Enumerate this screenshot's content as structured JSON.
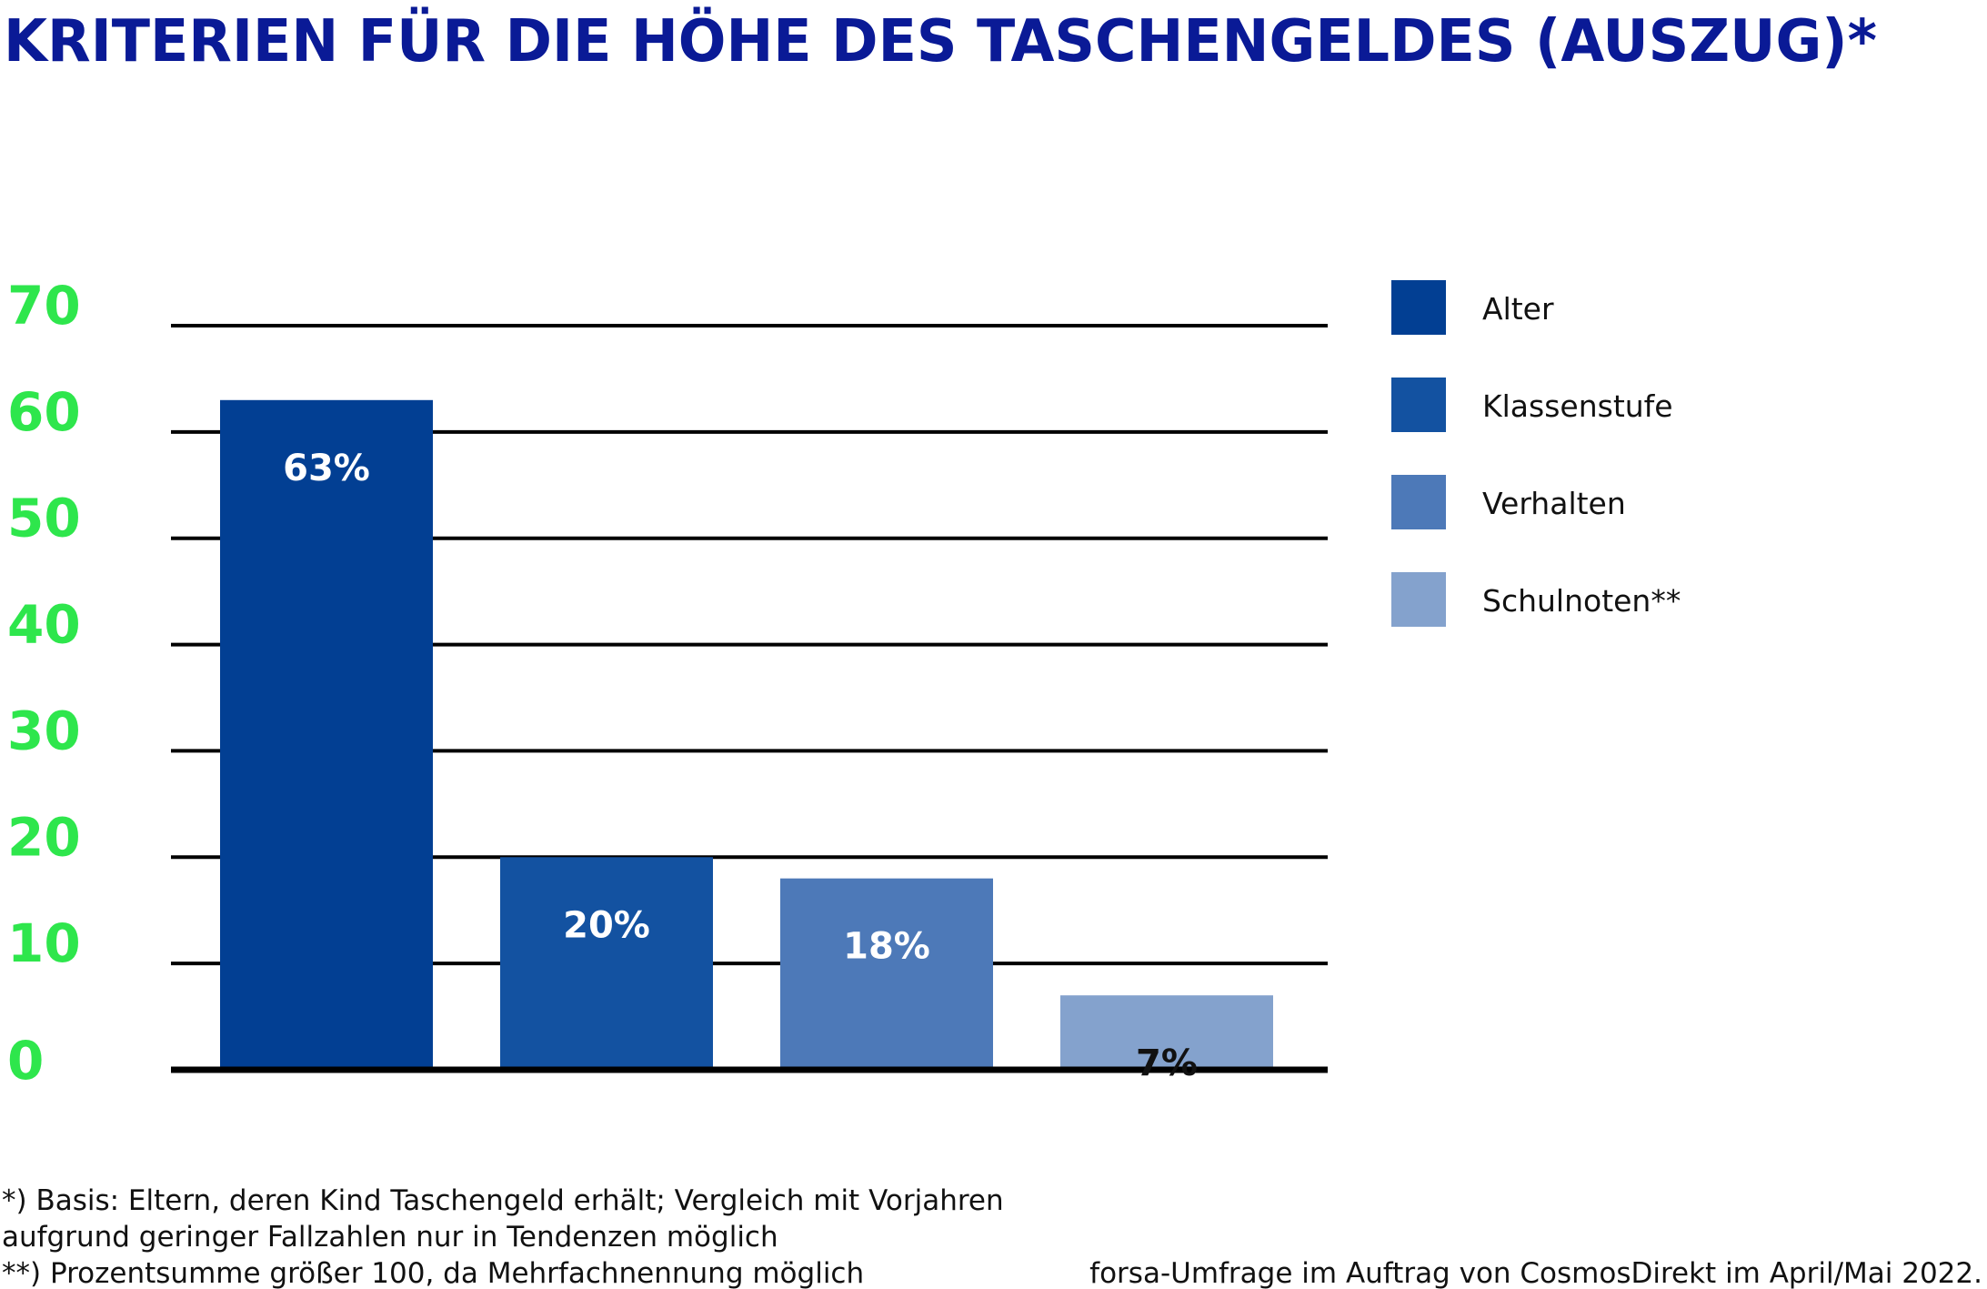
{
  "chart_data": {
    "type": "bar",
    "title": "KRITERIEN FÜR DIE HÖHE DES TASCHENGELDES (AUSZUG)*",
    "ylim": [
      0,
      70
    ],
    "yticks": [
      0,
      10,
      20,
      30,
      40,
      50,
      60,
      70
    ],
    "grid": true,
    "legend_position": "right",
    "categories": [
      "Alter",
      "Klassenstufe",
      "Verhalten",
      "Schulnoten**"
    ],
    "values": [
      63,
      20,
      18,
      7
    ],
    "data_labels": [
      "63%",
      "20%",
      "18%",
      "7%"
    ],
    "colors": [
      "#023f93",
      "#1352a1",
      "#4d79b8",
      "#84a2cd"
    ],
    "label_colors": [
      "#ffffff",
      "#ffffff",
      "#ffffff",
      "#111111"
    ],
    "tick_color": "#2ee64c",
    "title_color": "#0a1a96"
  },
  "footnotes": [
    "*) Basis: Eltern, deren Kind Taschengeld erhält; Vergleich mit Vorjahren",
    "aufgrund geringer Fallzahlen nur in Tendenzen möglich",
    "**) Prozentsumme größer 100, da Mehrfachnennung möglich"
  ],
  "source": "forsa-Umfrage im Auftrag von CosmosDirekt im April/Mai 2022."
}
